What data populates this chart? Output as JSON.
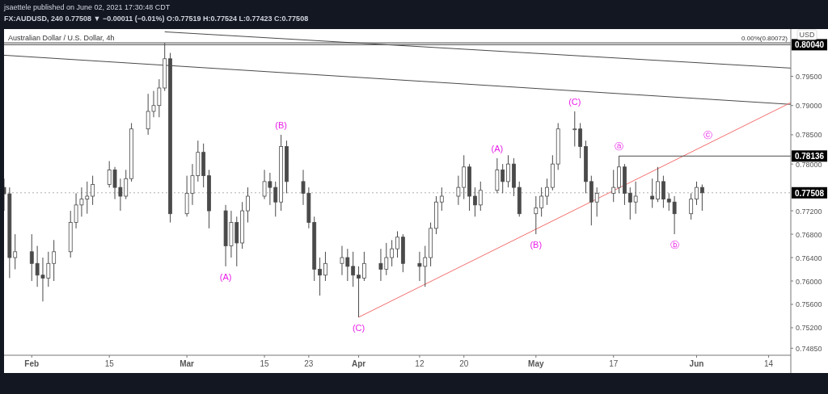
{
  "chart_data": {
    "type": "candlestick",
    "title": "Australian Dollar / U.S. Dollar, 4h",
    "subtitle": "FX:AUDUSD, 240 0.77508 ▼ −0.00011 (−0.01%) O:0.77519 H:0.77524 L:0.77423 C:0.77508",
    "x": [
      "2021-01-27",
      "2021-01-28",
      "2021-01-29",
      "2021-02-01",
      "2021-02-02",
      "2021-02-03",
      "2021-02-04",
      "2021-02-05",
      "2021-02-08",
      "2021-02-09",
      "2021-02-10",
      "2021-02-11",
      "2021-02-12",
      "2021-02-15",
      "2021-02-16",
      "2021-02-17",
      "2021-02-18",
      "2021-02-19",
      "2021-02-22",
      "2021-02-23",
      "2021-02-24",
      "2021-02-25",
      "2021-02-26",
      "2021-03-01",
      "2021-03-02",
      "2021-03-03",
      "2021-03-04",
      "2021-03-05",
      "2021-03-08",
      "2021-03-09",
      "2021-03-10",
      "2021-03-11",
      "2021-03-12",
      "2021-03-15",
      "2021-03-16",
      "2021-03-17",
      "2021-03-18",
      "2021-03-19",
      "2021-03-22",
      "2021-03-23",
      "2021-03-24",
      "2021-03-25",
      "2021-03-26",
      "2021-03-29",
      "2021-03-30",
      "2021-03-31",
      "2021-04-01",
      "2021-04-02",
      "2021-04-05",
      "2021-04-06",
      "2021-04-07",
      "2021-04-08",
      "2021-04-09",
      "2021-04-12",
      "2021-04-13",
      "2021-04-14",
      "2021-04-15",
      "2021-04-16",
      "2021-04-19",
      "2021-04-20",
      "2021-04-21",
      "2021-04-22",
      "2021-04-23",
      "2021-04-26",
      "2021-04-27",
      "2021-04-28",
      "2021-04-29",
      "2021-04-30",
      "2021-05-03",
      "2021-05-04",
      "2021-05-05",
      "2021-05-06",
      "2021-05-07",
      "2021-05-10",
      "2021-05-11",
      "2021-05-12",
      "2021-05-13",
      "2021-05-14",
      "2021-05-17",
      "2021-05-18",
      "2021-05-19",
      "2021-05-20",
      "2021-05-21",
      "2021-05-24",
      "2021-05-25",
      "2021-05-26",
      "2021-05-27",
      "2021-05-28",
      "2021-05-31",
      "2021-06-01",
      "2021-06-02"
    ],
    "ohlc": [
      [
        0.776,
        0.7775,
        0.772,
        0.7749
      ],
      [
        0.7749,
        0.776,
        0.7605,
        0.764
      ],
      [
        0.764,
        0.768,
        0.762,
        0.765
      ],
      [
        0.765,
        0.768,
        0.76,
        0.763
      ],
      [
        0.763,
        0.766,
        0.759,
        0.761
      ],
      [
        0.761,
        0.764,
        0.7565,
        0.7605
      ],
      [
        0.7605,
        0.765,
        0.759,
        0.763
      ],
      [
        0.763,
        0.767,
        0.76,
        0.765
      ],
      [
        0.765,
        0.772,
        0.764,
        0.77
      ],
      [
        0.77,
        0.775,
        0.769,
        0.773
      ],
      [
        0.773,
        0.776,
        0.771,
        0.774
      ],
      [
        0.774,
        0.777,
        0.7715,
        0.7745
      ],
      [
        0.7745,
        0.778,
        0.773,
        0.7765
      ],
      [
        0.7765,
        0.7805,
        0.776,
        0.779
      ],
      [
        0.779,
        0.7795,
        0.774,
        0.776
      ],
      [
        0.776,
        0.7775,
        0.772,
        0.7745
      ],
      [
        0.7745,
        0.779,
        0.774,
        0.7775
      ],
      [
        0.7775,
        0.787,
        0.777,
        0.786
      ],
      [
        0.786,
        0.792,
        0.785,
        0.789
      ],
      [
        0.789,
        0.7925,
        0.788,
        0.79
      ],
      [
        0.79,
        0.7945,
        0.788,
        0.793
      ],
      [
        0.793,
        0.8007,
        0.7925,
        0.798
      ],
      [
        0.798,
        0.799,
        0.77,
        0.7715
      ],
      [
        0.7715,
        0.778,
        0.771,
        0.775
      ],
      [
        0.775,
        0.78,
        0.773,
        0.778
      ],
      [
        0.778,
        0.784,
        0.777,
        0.782
      ],
      [
        0.782,
        0.7835,
        0.776,
        0.778
      ],
      [
        0.778,
        0.779,
        0.769,
        0.772
      ],
      [
        0.772,
        0.773,
        0.7625,
        0.766
      ],
      [
        0.766,
        0.772,
        0.764,
        0.77
      ],
      [
        0.77,
        0.771,
        0.7625,
        0.7665
      ],
      [
        0.7665,
        0.7735,
        0.7655,
        0.772
      ],
      [
        0.772,
        0.776,
        0.77,
        0.7745
      ],
      [
        0.7745,
        0.779,
        0.774,
        0.777
      ],
      [
        0.777,
        0.7785,
        0.773,
        0.776
      ],
      [
        0.776,
        0.777,
        0.771,
        0.7735
      ],
      [
        0.7735,
        0.785,
        0.772,
        0.783
      ],
      [
        0.783,
        0.784,
        0.775,
        0.777
      ],
      [
        0.777,
        0.779,
        0.773,
        0.775
      ],
      [
        0.775,
        0.776,
        0.769,
        0.77
      ],
      [
        0.77,
        0.771,
        0.76,
        0.762
      ],
      [
        0.762,
        0.764,
        0.7575,
        0.761
      ],
      [
        0.761,
        0.765,
        0.76,
        0.763
      ],
      [
        0.763,
        0.766,
        0.761,
        0.764
      ],
      [
        0.764,
        0.7655,
        0.76,
        0.7625
      ],
      [
        0.7625,
        0.765,
        0.759,
        0.761
      ],
      [
        0.761,
        0.7625,
        0.7538,
        0.7605
      ],
      [
        0.7605,
        0.765,
        0.76,
        0.763
      ],
      [
        0.763,
        0.7655,
        0.76,
        0.762
      ],
      [
        0.762,
        0.7665,
        0.761,
        0.764
      ],
      [
        0.764,
        0.767,
        0.7625,
        0.7655
      ],
      [
        0.7655,
        0.7685,
        0.764,
        0.7675
      ],
      [
        0.7675,
        0.768,
        0.7615,
        0.763
      ],
      [
        0.763,
        0.765,
        0.76,
        0.7625
      ],
      [
        0.7625,
        0.766,
        0.759,
        0.764
      ],
      [
        0.764,
        0.77,
        0.7625,
        0.769
      ],
      [
        0.769,
        0.7745,
        0.768,
        0.7735
      ],
      [
        0.7735,
        0.776,
        0.772,
        0.7745
      ],
      [
        0.7745,
        0.778,
        0.773,
        0.776
      ],
      [
        0.776,
        0.7815,
        0.774,
        0.7795
      ],
      [
        0.7795,
        0.78,
        0.772,
        0.7745
      ],
      [
        0.7745,
        0.776,
        0.771,
        0.773
      ],
      [
        0.773,
        0.777,
        0.772,
        0.7755
      ],
      [
        0.7755,
        0.781,
        0.775,
        0.779
      ],
      [
        0.779,
        0.78,
        0.775,
        0.777
      ],
      [
        0.777,
        0.7815,
        0.776,
        0.78
      ],
      [
        0.78,
        0.781,
        0.7745,
        0.776
      ],
      [
        0.776,
        0.777,
        0.771,
        0.7715
      ],
      [
        0.7715,
        0.7745,
        0.768,
        0.7725
      ],
      [
        0.7725,
        0.776,
        0.771,
        0.7745
      ],
      [
        0.7745,
        0.7775,
        0.773,
        0.776
      ],
      [
        0.776,
        0.7815,
        0.7755,
        0.78
      ],
      [
        0.78,
        0.787,
        0.779,
        0.786
      ],
      [
        0.786,
        0.789,
        0.783,
        0.786
      ],
      [
        0.786,
        0.787,
        0.781,
        0.783
      ],
      [
        0.783,
        0.784,
        0.775,
        0.777
      ],
      [
        0.777,
        0.778,
        0.7695,
        0.7735
      ],
      [
        0.7735,
        0.776,
        0.771,
        0.775
      ],
      [
        0.775,
        0.779,
        0.7735,
        0.776
      ],
      [
        0.776,
        0.7814,
        0.775,
        0.7795
      ],
      [
        0.7795,
        0.78,
        0.773,
        0.775
      ],
      [
        0.775,
        0.776,
        0.7705,
        0.7735
      ],
      [
        0.7735,
        0.777,
        0.7715,
        0.7745
      ],
      [
        0.7745,
        0.7775,
        0.7725,
        0.774
      ],
      [
        0.774,
        0.7795,
        0.7735,
        0.777
      ],
      [
        0.777,
        0.778,
        0.7725,
        0.774
      ],
      [
        0.774,
        0.775,
        0.772,
        0.7735
      ],
      [
        0.7735,
        0.7745,
        0.768,
        0.7715
      ],
      [
        0.7715,
        0.775,
        0.7705,
        0.774
      ],
      [
        0.774,
        0.777,
        0.773,
        0.776
      ],
      [
        0.776,
        0.7765,
        0.772,
        0.77508
      ]
    ],
    "color": "#4a4a4a",
    "series": [
      {
        "type": "line",
        "color": "#4a4a4a",
        "x": [
          "2021-02-25",
          "2021-06-18"
        ],
        "values": [
          0.8026,
          0.7964
        ]
      },
      {
        "type": "line",
        "color": "#4a4a4a",
        "x": [
          "2021-01-27",
          "2021-06-18"
        ],
        "values": [
          0.7986,
          0.7902
        ]
      },
      {
        "type": "line",
        "color": "#f26d6d",
        "x": [
          "2021-04-01",
          "2021-06-18"
        ],
        "values": [
          0.7538,
          0.7905
        ]
      },
      {
        "type": "line",
        "color": "#4a4a4a",
        "x": [
          "2021-05-18",
          "2021-06-18"
        ],
        "values": [
          0.78136,
          0.78136
        ]
      }
    ],
    "xlim": [
      "2021-01-27",
      "2021-06-18"
    ],
    "xticks": [
      {
        "value": "2021-02-01",
        "label": "Feb"
      },
      {
        "value": "2021-02-15",
        "label": "15"
      },
      {
        "value": "2021-03-01",
        "label": "Mar"
      },
      {
        "value": "2021-03-15",
        "label": "15"
      },
      {
        "value": "2021-03-23",
        "label": "23"
      },
      {
        "value": "2021-04-01",
        "label": "Apr"
      },
      {
        "value": "2021-04-12",
        "label": "12"
      },
      {
        "value": "2021-04-20",
        "label": "20"
      },
      {
        "value": "2021-05-03",
        "label": "May"
      },
      {
        "value": "2021-05-17",
        "label": "17"
      },
      {
        "value": "2021-06-01",
        "label": "Jun"
      },
      {
        "value": "2021-06-14",
        "label": "14"
      }
    ],
    "ylim": [
      0.7473,
      0.8028
    ],
    "yticks": [
      {
        "value": 0.795,
        "label": "0.79500"
      },
      {
        "value": 0.79,
        "label": "0.79000"
      },
      {
        "value": 0.785,
        "label": "0.78500"
      },
      {
        "value": 0.78,
        "label": "0.78000"
      },
      {
        "value": 0.772,
        "label": "0.77200"
      },
      {
        "value": 0.768,
        "label": "0.76800"
      },
      {
        "value": 0.764,
        "label": "0.76400"
      },
      {
        "value": 0.76,
        "label": "0.76000"
      },
      {
        "value": 0.756,
        "label": "0.75600"
      },
      {
        "value": 0.752,
        "label": "0.75200"
      },
      {
        "value": 0.7485,
        "label": "0.74850"
      }
    ],
    "ylabel": "USD",
    "ref_lines": [
      {
        "axis": "y",
        "value": 0.80072,
        "label": "0.00%(0.80072)",
        "color": "#4a4a4a"
      },
      {
        "axis": "y",
        "value": 0.8004,
        "label": "0.80040",
        "color": "#4a4a4a"
      },
      {
        "axis": "y",
        "value": 0.77508,
        "label": "0.77508",
        "color": "#b0b0b0",
        "line_style": "dotted"
      }
    ],
    "annotations": [
      "jsaettele published on June 02, 2021 17:30:48 CDT",
      {
        "text": "0.78136",
        "x": "2021-06-18",
        "y": 0.78136
      },
      {
        "text": "(A)",
        "x": "2021-03-08",
        "y": 0.7625
      },
      {
        "text": "(B)",
        "x": "2021-03-18",
        "y": 0.785
      },
      {
        "text": "(C)",
        "x": "2021-04-01",
        "y": 0.7538
      },
      {
        "text": "(A)",
        "x": "2021-04-26",
        "y": 0.781
      },
      {
        "text": "(B)",
        "x": "2021-05-03",
        "y": 0.768
      },
      {
        "text": "(C)",
        "x": "2021-05-10",
        "y": 0.789
      },
      {
        "text": "ⓐ",
        "x": "2021-05-18",
        "y": 0.7814
      },
      {
        "text": "ⓑ",
        "x": "2021-05-28",
        "y": 0.768
      },
      {
        "text": "ⓒ",
        "x": "2021-06-03",
        "y": 0.7834
      }
    ],
    "grid": false
  }
}
